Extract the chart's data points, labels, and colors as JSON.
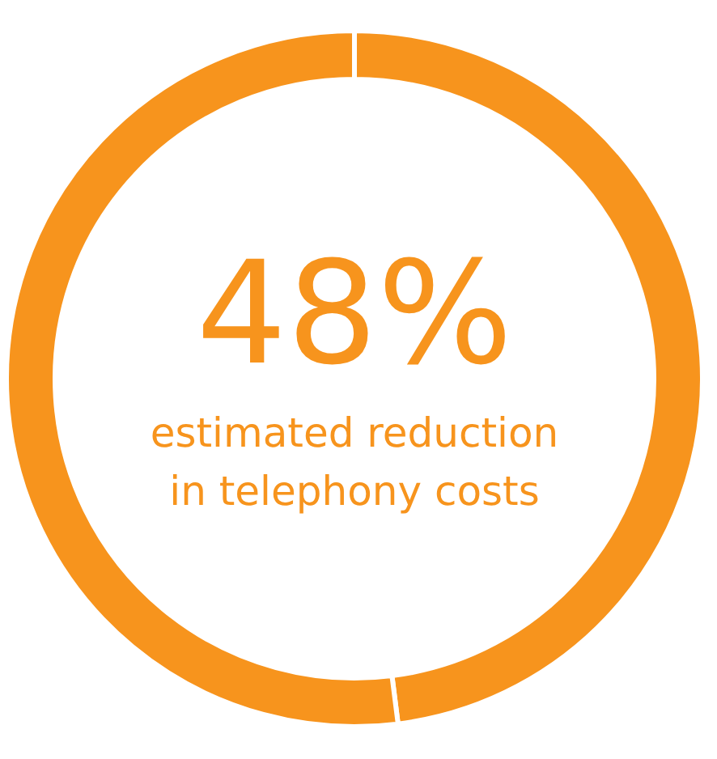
{
  "chart_data": {
    "type": "donut",
    "title": "estimated reduction in telephony costs",
    "categories": [
      null,
      null
    ],
    "values": [
      48,
      52
    ],
    "colors": [
      "#f7941d",
      "#f7941d"
    ],
    "value_labels": [
      "48%",
      null
    ],
    "legend": false
  }
}
